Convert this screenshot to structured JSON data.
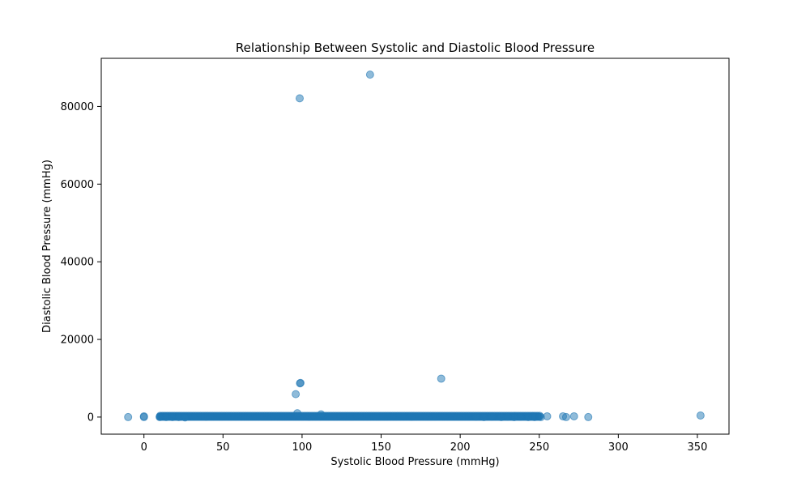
{
  "chart_data": {
    "type": "scatter",
    "title": "Relationship Between Systolic and Diastolic Blood Pressure",
    "xlabel": "Systolic Blood Pressure (mmHg)",
    "ylabel": "Diastolic Blood Pressure (mmHg)",
    "xlim": [
      -27,
      370
    ],
    "ylim": [
      -4400,
      92400
    ],
    "xticks": [
      0,
      50,
      100,
      150,
      200,
      250,
      300,
      350
    ],
    "yticks": [
      0,
      20000,
      40000,
      60000,
      80000
    ],
    "grid": false,
    "legend": "none",
    "point_color": "#1f77b4",
    "point_alpha": 0.5,
    "dense_band": {
      "x_range": [
        10,
        250
      ],
      "y_value": 80,
      "description": "dense horizontal band of points along y≈0"
    },
    "points": [
      {
        "x": 143,
        "y": 88200
      },
      {
        "x": 98.5,
        "y": 82100
      },
      {
        "x": 99,
        "y": 8800
      },
      {
        "x": 98.7,
        "y": 8700
      },
      {
        "x": 188,
        "y": 9900
      },
      {
        "x": 96,
        "y": 5900
      },
      {
        "x": 97,
        "y": 1000
      },
      {
        "x": 112,
        "y": 700
      },
      {
        "x": 352,
        "y": 400
      },
      {
        "x": 281,
        "y": 0
      },
      {
        "x": 272,
        "y": 200
      },
      {
        "x": 265,
        "y": 200
      },
      {
        "x": 267,
        "y": 0
      },
      {
        "x": 255,
        "y": 200
      },
      {
        "x": 251,
        "y": 0
      },
      {
        "x": 247,
        "y": 0
      },
      {
        "x": 246,
        "y": 200
      },
      {
        "x": 243,
        "y": 0
      },
      {
        "x": 238,
        "y": 100
      },
      {
        "x": 234,
        "y": 0
      },
      {
        "x": 230,
        "y": 100
      },
      {
        "x": 226,
        "y": 0
      },
      {
        "x": 220,
        "y": 150
      },
      {
        "x": 215,
        "y": 0
      },
      {
        "x": 210,
        "y": 100
      },
      {
        "x": 0,
        "y": 0
      },
      {
        "x": 0,
        "y": 200
      },
      {
        "x": -10,
        "y": 0
      },
      {
        "x": 10,
        "y": 0
      },
      {
        "x": 14,
        "y": 0
      },
      {
        "x": 18,
        "y": 0
      },
      {
        "x": 22,
        "y": 0
      },
      {
        "x": 26,
        "y": -100
      }
    ]
  }
}
